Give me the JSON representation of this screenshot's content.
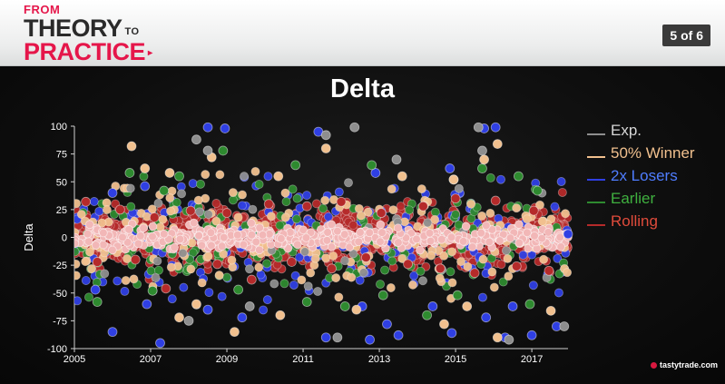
{
  "header": {
    "logo": {
      "line1": "FROM",
      "line2": "THEORY",
      "line2_suffix": "TO",
      "line3": "PRACTICE",
      "arrow": "▸"
    },
    "page_indicator": "5 of 6"
  },
  "slide": {
    "title": "Delta"
  },
  "footer": {
    "brand": "tastytrade.com"
  },
  "colors": {
    "brand_red": "#e5164a",
    "background": "#0b0b0b"
  },
  "chart_data": {
    "type": "scatter",
    "title": "Delta",
    "xlabel": "",
    "ylabel": "Delta",
    "xlim": [
      2005.0,
      2017.95
    ],
    "ylim": [
      -100,
      100
    ],
    "x_ticks": [
      "2005",
      "2007",
      "2009",
      "2011",
      "2013",
      "2015",
      "2017"
    ],
    "y_ticks": [
      "100",
      "75",
      "50",
      "25",
      "0",
      "-25",
      "-50",
      "-75",
      "-100"
    ],
    "grid": false,
    "legend_position": "right",
    "series": [
      {
        "name": "Exp.",
        "color": "#8e8e8e",
        "points": [
          [
            2008.2,
            88
          ],
          [
            2008.5,
            78
          ],
          [
            2011.6,
            92
          ],
          [
            2012.35,
            99
          ],
          [
            2013.45,
            70
          ],
          [
            2015.6,
            99
          ],
          [
            2015.7,
            78
          ],
          [
            2008.0,
            -75
          ],
          [
            2009.6,
            -62
          ],
          [
            2017.85,
            -80
          ],
          [
            2016.4,
            -92
          ],
          [
            2011.9,
            -90
          ]
        ]
      },
      {
        "name": "50% Winner",
        "color": "#f1c08e",
        "points": [
          [
            2006.5,
            82
          ],
          [
            2006.85,
            62
          ],
          [
            2007.5,
            58
          ],
          [
            2008.6,
            72
          ],
          [
            2010.35,
            55
          ],
          [
            2011.6,
            80
          ],
          [
            2013.6,
            55
          ],
          [
            2014.95,
            52
          ],
          [
            2015.75,
            70
          ],
          [
            2016.1,
            84
          ],
          [
            2007.75,
            -72
          ],
          [
            2008.2,
            -60
          ],
          [
            2009.2,
            -85
          ],
          [
            2010.4,
            -70
          ],
          [
            2012.4,
            -65
          ],
          [
            2014.7,
            -78
          ],
          [
            2015.3,
            -62
          ],
          [
            2016.1,
            -90
          ],
          [
            2017.5,
            -66
          ]
        ]
      },
      {
        "name": "2x Losers",
        "color": "#2f3fe3",
        "points": [
          [
            2006.0,
            40
          ],
          [
            2006.85,
            46
          ],
          [
            2008.5,
            99
          ],
          [
            2008.95,
            98
          ],
          [
            2011.4,
            95
          ],
          [
            2012.9,
            58
          ],
          [
            2014.85,
            62
          ],
          [
            2015.75,
            98
          ],
          [
            2016.05,
            99
          ],
          [
            2017.95,
            3
          ],
          [
            2005.55,
            -47
          ],
          [
            2006.0,
            -85
          ],
          [
            2006.9,
            -60
          ],
          [
            2007.25,
            -95
          ],
          [
            2008.5,
            -65
          ],
          [
            2009.4,
            -72
          ],
          [
            2011.6,
            -90
          ],
          [
            2012.55,
            -62
          ],
          [
            2012.75,
            -92
          ],
          [
            2013.2,
            -78
          ],
          [
            2013.5,
            -88
          ],
          [
            2014.4,
            -62
          ],
          [
            2014.9,
            -86
          ],
          [
            2015.8,
            -72
          ],
          [
            2016.3,
            -90
          ],
          [
            2016.5,
            -62
          ],
          [
            2017.0,
            -88
          ],
          [
            2017.65,
            -80
          ]
        ]
      },
      {
        "name": "Earlier",
        "color": "#2e8a2f",
        "points": [
          [
            2006.45,
            58
          ],
          [
            2007.35,
            42
          ],
          [
            2007.75,
            55
          ],
          [
            2008.9,
            78
          ],
          [
            2010.8,
            65
          ],
          [
            2012.8,
            65
          ],
          [
            2014.95,
            52
          ],
          [
            2015.7,
            62
          ],
          [
            2016.65,
            55
          ],
          [
            2017.15,
            42
          ],
          [
            2005.6,
            -58
          ],
          [
            2007.05,
            -48
          ],
          [
            2009.3,
            -47
          ],
          [
            2011.1,
            -58
          ],
          [
            2012.1,
            -62
          ],
          [
            2013.1,
            -52
          ],
          [
            2014.25,
            -70
          ],
          [
            2015.05,
            -52
          ],
          [
            2016.95,
            -60
          ]
        ]
      },
      {
        "name": "Rolling",
        "color": "#b52a2a",
        "points": [
          [
            2005.3,
            32
          ],
          [
            2006.2,
            25
          ],
          [
            2007.1,
            18
          ],
          [
            2008.05,
            24
          ],
          [
            2009.0,
            22
          ],
          [
            2010.1,
            30
          ],
          [
            2011.1,
            28
          ],
          [
            2012.0,
            32
          ],
          [
            2013.05,
            22
          ],
          [
            2014.15,
            28
          ],
          [
            2015.0,
            35
          ],
          [
            2016.05,
            33
          ],
          [
            2017.05,
            24
          ],
          [
            2005.6,
            -22
          ],
          [
            2006.6,
            -20
          ],
          [
            2007.4,
            -46
          ],
          [
            2008.75,
            -24
          ],
          [
            2009.65,
            -38
          ],
          [
            2010.7,
            -22
          ],
          [
            2011.75,
            -28
          ],
          [
            2012.65,
            -18
          ],
          [
            2013.75,
            -24
          ],
          [
            2014.6,
            -28
          ],
          [
            2015.5,
            -32
          ],
          [
            2016.6,
            -26
          ],
          [
            2017.45,
            -30
          ]
        ]
      }
    ]
  }
}
